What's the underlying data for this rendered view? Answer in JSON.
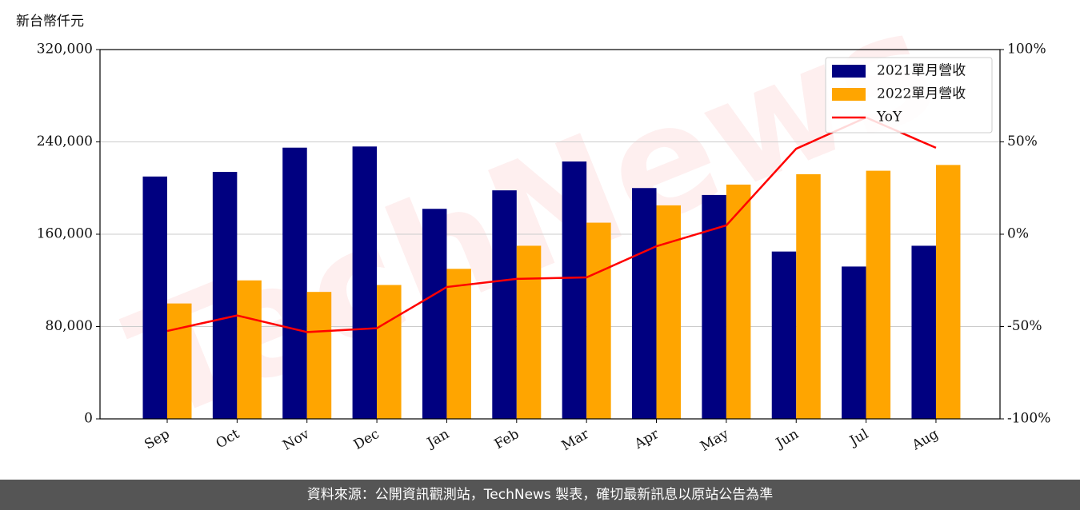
{
  "chart_data": {
    "type": "bar_line",
    "y_label": "新台幣仟元",
    "watermark": "TechNews",
    "categories": [
      "Sep",
      "Oct",
      "Nov",
      "Dec",
      "Jan",
      "Feb",
      "Mar",
      "Apr",
      "May",
      "Jun",
      "Jul",
      "Aug"
    ],
    "series": [
      {
        "name": "2021單月營收",
        "type": "bar",
        "color": "#000080",
        "values": [
          210000,
          214000,
          235000,
          236000,
          182000,
          198000,
          223000,
          200000,
          194000,
          145000,
          132000,
          150000
        ]
      },
      {
        "name": "2022單月營收",
        "type": "bar",
        "color": "#ffa500",
        "values": [
          100000,
          120000,
          110000,
          116000,
          130000,
          150000,
          170000,
          185000,
          203000,
          212000,
          215000,
          220000
        ]
      },
      {
        "name": "YoY",
        "type": "line",
        "axis": "y2",
        "color": "#ff0000",
        "values": [
          -52.4,
          -44,
          -53,
          -50.9,
          -28.6,
          -24.2,
          -23.4,
          -6.5,
          4.8,
          46.3,
          63.2,
          46.8
        ]
      }
    ],
    "ylim": [
      0,
      320000
    ],
    "yticks": [
      0,
      {
        "value": 80000,
        "label": "80,000"
      },
      {
        "value": 160000,
        "label": "160,000"
      },
      {
        "value": 240000,
        "label": "240,000"
      },
      {
        "value": 320000,
        "label": "320,000"
      }
    ],
    "y2lim": [
      -100,
      100
    ],
    "y2ticks": [
      {
        "value": -100,
        "label": "-100%"
      },
      {
        "value": -50,
        "label": "-50%"
      },
      {
        "value": 0,
        "label": "0%"
      },
      {
        "value": 50,
        "label": "50%"
      },
      {
        "value": 100,
        "label": "100%"
      }
    ],
    "grid": true,
    "legend": "upper right"
  },
  "footer": "資料來源：公開資訊觀測站，TechNews 製表，確切最新訊息以原站公告為準"
}
